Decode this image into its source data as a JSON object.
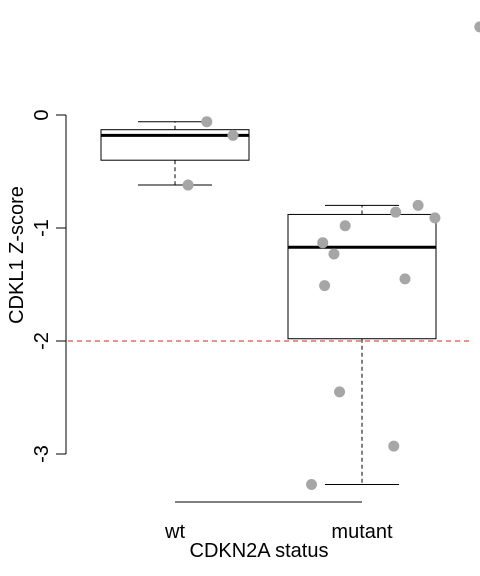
{
  "chart_data": {
    "type": "box",
    "title": "",
    "xlabel": "CDKN2A status",
    "ylabel": "CDKL1 Z-score",
    "categories": [
      "wt",
      "mutant"
    ],
    "yticks": [
      0,
      -1,
      -2,
      -3
    ],
    "ylim": [
      -3.45,
      0.8
    ],
    "reference_line": {
      "y": -2,
      "color": "#dd2222",
      "style": "dashed"
    },
    "boxes": [
      {
        "name": "wt",
        "whisker_low": -0.62,
        "q1": -0.4,
        "median": -0.18,
        "q3": -0.13,
        "whisker_high": -0.06
      },
      {
        "name": "mutant",
        "whisker_low": -3.27,
        "q1": -1.98,
        "median": -1.17,
        "q3": -0.88,
        "whisker_high": -0.8
      }
    ],
    "points": [
      {
        "group": "wt",
        "x_offset": 0.17,
        "y": -0.06
      },
      {
        "group": "wt",
        "x_offset": 0.31,
        "y": -0.18
      },
      {
        "group": "wt",
        "x_offset": 0.07,
        "y": -0.62
      },
      {
        "group": "mutant",
        "x_offset": 0.63,
        "y": 0.78
      },
      {
        "group": "mutant",
        "x_offset": 0.3,
        "y": -0.8
      },
      {
        "group": "mutant",
        "x_offset": 0.18,
        "y": -0.86
      },
      {
        "group": "mutant",
        "x_offset": 0.39,
        "y": -0.91
      },
      {
        "group": "mutant",
        "x_offset": -0.09,
        "y": -0.98
      },
      {
        "group": "mutant",
        "x_offset": -0.21,
        "y": -1.13
      },
      {
        "group": "mutant",
        "x_offset": -0.15,
        "y": -1.23
      },
      {
        "group": "mutant",
        "x_offset": 0.23,
        "y": -1.45
      },
      {
        "group": "mutant",
        "x_offset": -0.2,
        "y": -1.51
      },
      {
        "group": "mutant",
        "x_offset": -0.12,
        "y": -2.45
      },
      {
        "group": "mutant",
        "x_offset": 0.17,
        "y": -2.93
      },
      {
        "group": "mutant",
        "x_offset": -0.27,
        "y": -3.27
      }
    ],
    "colors": {
      "points": "#a6a6a6",
      "box": "#000000",
      "reference": "#dd2222"
    },
    "grid": false
  }
}
